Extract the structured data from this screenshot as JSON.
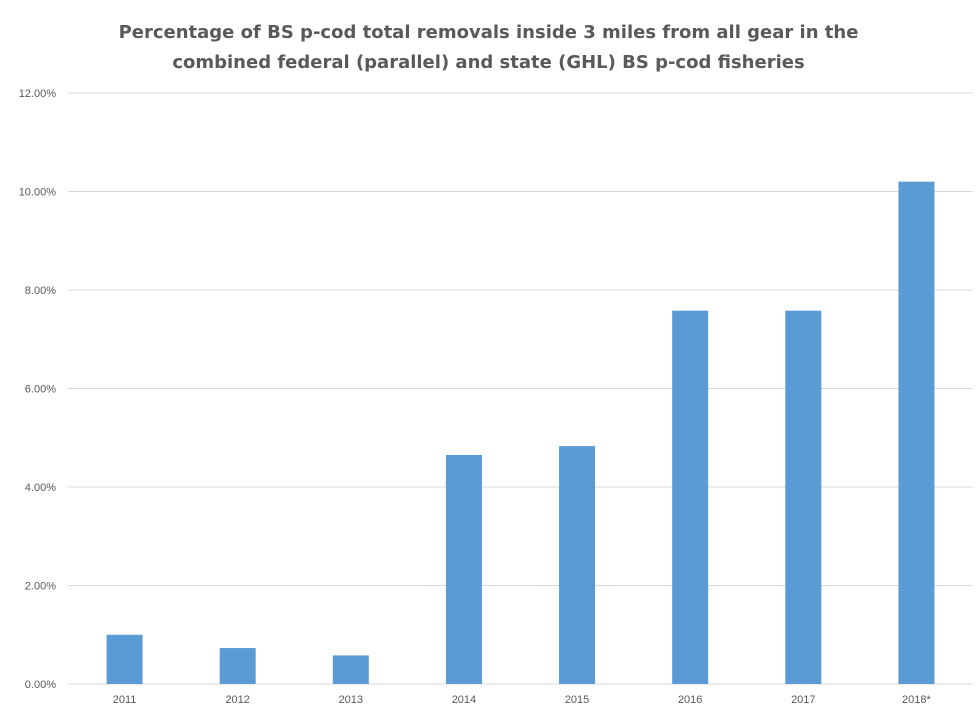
{
  "chart_data": {
    "type": "bar",
    "title_lines": [
      "Percentage of BS p-cod total removals inside 3 miles from all gear in the",
      "combined federal (parallel) and state (GHL) BS p-cod fisheries"
    ],
    "xlabel": "",
    "ylabel": "",
    "categories": [
      "2011",
      "2012",
      "2013",
      "2014",
      "2015",
      "2016",
      "2017",
      "2018*"
    ],
    "values": [
      1.0,
      0.73,
      0.58,
      4.65,
      4.83,
      7.58,
      7.58,
      10.2
    ],
    "ylim": [
      0,
      12
    ],
    "ytick_values": [
      0,
      2,
      4,
      6,
      8,
      10,
      12
    ],
    "ytick_labels": [
      "0.00%",
      "2.00%",
      "4.00%",
      "6.00%",
      "8.00%",
      "10.00%",
      "12.00%"
    ],
    "grid": true,
    "legend": false,
    "bar_color": "#5B9BD5",
    "grid_color": "#D9D9D9"
  }
}
